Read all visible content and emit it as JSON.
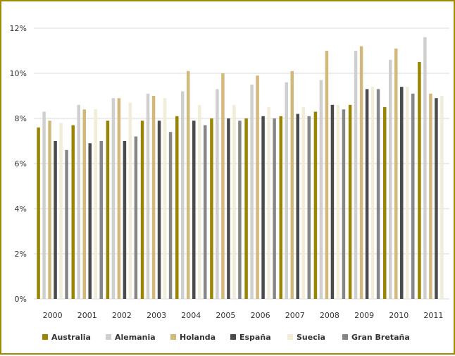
{
  "chart_data": {
    "type": "bar",
    "categories": [
      "2000",
      "2001",
      "2002",
      "2003",
      "2004",
      "2005",
      "2006",
      "2007",
      "2008",
      "2009",
      "2010",
      "2011"
    ],
    "series": [
      {
        "name": "Australia",
        "color": "#9a8404",
        "values": [
          7.6,
          7.7,
          7.9,
          7.9,
          8.1,
          8.0,
          8.0,
          8.1,
          8.3,
          8.6,
          8.5,
          10.5
        ]
      },
      {
        "name": "Alemania",
        "color": "#cfcfcf",
        "values": [
          8.3,
          8.6,
          8.9,
          9.1,
          9.2,
          9.3,
          9.5,
          9.6,
          9.7,
          11.0,
          10.6,
          11.6
        ]
      },
      {
        "name": "Holanda",
        "color": "#d2b87b",
        "values": [
          7.9,
          8.4,
          8.9,
          9.0,
          10.1,
          10.0,
          9.9,
          10.1,
          11.0,
          11.2,
          11.1,
          9.1
        ]
      },
      {
        "name": "España",
        "color": "#4b4b4b",
        "values": [
          7.0,
          6.9,
          7.0,
          7.9,
          7.9,
          8.0,
          8.1,
          8.2,
          8.6,
          9.3,
          9.4,
          8.9
        ]
      },
      {
        "name": "Suecia",
        "color": "#f1edd8",
        "values": [
          7.8,
          8.4,
          8.7,
          8.9,
          8.6,
          8.6,
          8.5,
          8.5,
          8.6,
          9.4,
          9.4,
          9.0
        ]
      },
      {
        "name": "Gran Bretaña",
        "color": "#868686",
        "values": [
          6.6,
          7.0,
          7.2,
          7.4,
          7.7,
          7.9,
          8.0,
          8.1,
          8.4,
          9.3,
          9.1,
          null
        ]
      }
    ],
    "y_ticks": [
      "0%",
      "2%",
      "4%",
      "6%",
      "8%",
      "10%",
      "12%"
    ],
    "ylim": [
      0,
      12
    ],
    "grid": true,
    "legend_position": "bottom"
  }
}
